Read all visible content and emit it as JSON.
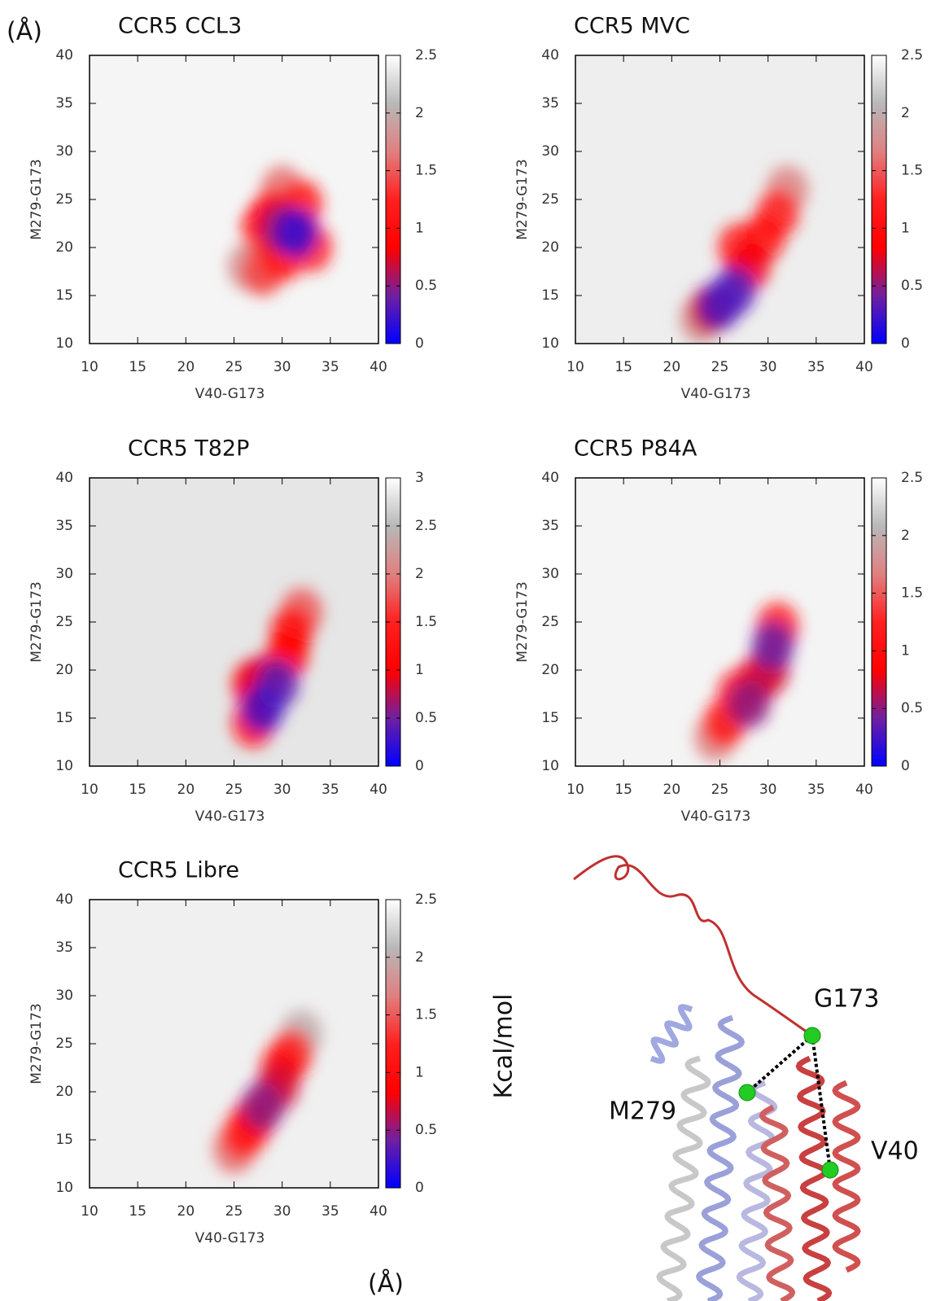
{
  "chart_data": [
    {
      "type": "heatmap",
      "title": "CCR5 CCL3",
      "x_label": "V40-G173",
      "y_label": "M279-G173",
      "xlim": [
        10,
        40
      ],
      "ylim": [
        10,
        40
      ],
      "xticks": [
        10,
        15,
        20,
        25,
        30,
        35,
        40
      ],
      "yticks": [
        10,
        15,
        20,
        25,
        30,
        35,
        40
      ],
      "clim": [
        0,
        2.5
      ],
      "cticks": [
        0,
        0.5,
        1,
        1.5,
        2,
        2.5
      ],
      "background": "#f5f5f5",
      "colormap": [
        "#0000ff",
        "#7020a0",
        "#ff0000",
        "#ff2020",
        "#e08080",
        "#b8b8b8",
        "#ffffff"
      ],
      "x": [
        26.5,
        30,
        28,
        32,
        33,
        28,
        30,
        29,
        30,
        31.5
      ],
      "y": [
        18,
        26,
        17.5,
        24.5,
        20,
        22,
        19,
        23.5,
        22,
        21.5
      ],
      "values": [
        1.8,
        1.6,
        1.4,
        1.1,
        1.2,
        1.0,
        1.0,
        0.9,
        0.5,
        0.2
      ]
    },
    {
      "type": "heatmap",
      "title": "CCR5 MVC",
      "x_label": "V40-G173",
      "y_label": "M279-G173",
      "xlim": [
        10,
        40
      ],
      "ylim": [
        10,
        40
      ],
      "xticks": [
        10,
        15,
        20,
        25,
        30,
        35,
        40
      ],
      "yticks": [
        10,
        15,
        20,
        25,
        30,
        35,
        40
      ],
      "clim": [
        0,
        2.5
      ],
      "cticks": [
        0,
        0.5,
        1,
        1.5,
        2,
        2.5
      ],
      "background": "#eeeeee",
      "colormap": [
        "#0000ff",
        "#7020a0",
        "#ff0000",
        "#ff2020",
        "#e08080",
        "#b8b8b8",
        "#ffffff"
      ],
      "x": [
        23,
        32,
        31,
        27,
        29.5,
        28,
        24,
        25,
        26.5
      ],
      "y": [
        12.5,
        26,
        23.5,
        20,
        21,
        18,
        13.5,
        14,
        15.5
      ],
      "values": [
        1.8,
        1.7,
        1.2,
        1.2,
        1.0,
        0.8,
        0.7,
        0.3,
        0.3
      ]
    },
    {
      "type": "heatmap",
      "title": "CCR5 T82P",
      "x_label": "V40-G173",
      "y_label": "M279-G173",
      "xlim": [
        10,
        40
      ],
      "ylim": [
        10,
        40
      ],
      "xticks": [
        10,
        15,
        20,
        25,
        30,
        35,
        40
      ],
      "yticks": [
        10,
        15,
        20,
        25,
        30,
        35,
        40
      ],
      "clim": [
        0,
        3
      ],
      "cticks": [
        0,
        0.5,
        1,
        1.5,
        2,
        2.5,
        3
      ],
      "background": "#e6e6e6",
      "colormap": [
        "#0000ff",
        "#7020a0",
        "#ff0000",
        "#ff2020",
        "#e08080",
        "#b8b8b8",
        "#ffffff"
      ],
      "x": [
        32,
        27,
        31,
        27,
        30.5,
        28,
        29.5,
        28
      ],
      "y": [
        26,
        14.5,
        24,
        18.5,
        21.5,
        19,
        18.5,
        16
      ],
      "values": [
        1.8,
        1.2,
        1.2,
        1.1,
        1.0,
        0.9,
        0.4,
        0.3
      ]
    },
    {
      "type": "heatmap",
      "title": "CCR5 P84A",
      "x_label": "V40-G173",
      "y_label": "M279-G173",
      "xlim": [
        10,
        40
      ],
      "ylim": [
        10,
        40
      ],
      "xticks": [
        10,
        15,
        20,
        25,
        30,
        35,
        40
      ],
      "yticks": [
        10,
        15,
        20,
        25,
        30,
        35,
        40
      ],
      "clim": [
        0,
        2.5
      ],
      "cticks": [
        0,
        0.5,
        1,
        1.5,
        2,
        2.5
      ],
      "background": "#f4f4f4",
      "colormap": [
        "#0000ff",
        "#7020a0",
        "#ff0000",
        "#ff2020",
        "#e08080",
        "#b8b8b8",
        "#ffffff"
      ],
      "x": [
        24.5,
        31,
        25.5,
        27,
        29,
        30,
        28,
        30.5
      ],
      "y": [
        13,
        24.5,
        14.5,
        17.5,
        19,
        20,
        16.5,
        22.5
      ],
      "values": [
        1.7,
        1.2,
        1.1,
        1.0,
        0.8,
        0.7,
        0.5,
        0.4
      ]
    },
    {
      "type": "heatmap",
      "title": "CCR5 Libre",
      "x_label": "V40-G173",
      "y_label": "M279-G173",
      "xlim": [
        10,
        40
      ],
      "ylim": [
        10,
        40
      ],
      "xticks": [
        10,
        15,
        20,
        25,
        30,
        35,
        40
      ],
      "yticks": [
        10,
        15,
        20,
        25,
        30,
        35,
        40
      ],
      "clim": [
        0,
        2.5
      ],
      "cticks": [
        0,
        0.5,
        1,
        1.5,
        2,
        2.5
      ],
      "background": "#f0f0f0",
      "colormap": [
        "#0000ff",
        "#7020a0",
        "#ff0000",
        "#ff2020",
        "#e08080",
        "#b8b8b8",
        "#ffffff"
      ],
      "x": [
        32,
        25,
        31,
        26,
        30,
        27,
        29.5,
        28
      ],
      "y": [
        26,
        14,
        24,
        15.5,
        22.5,
        17,
        20.5,
        18.5
      ],
      "values": [
        2.0,
        1.6,
        1.3,
        1.2,
        1.0,
        0.9,
        0.7,
        0.5
      ]
    }
  ],
  "annotations": [
    "(Å)",
    "(Å)",
    "Kcal/mol",
    "G173",
    "M279",
    "V40"
  ]
}
